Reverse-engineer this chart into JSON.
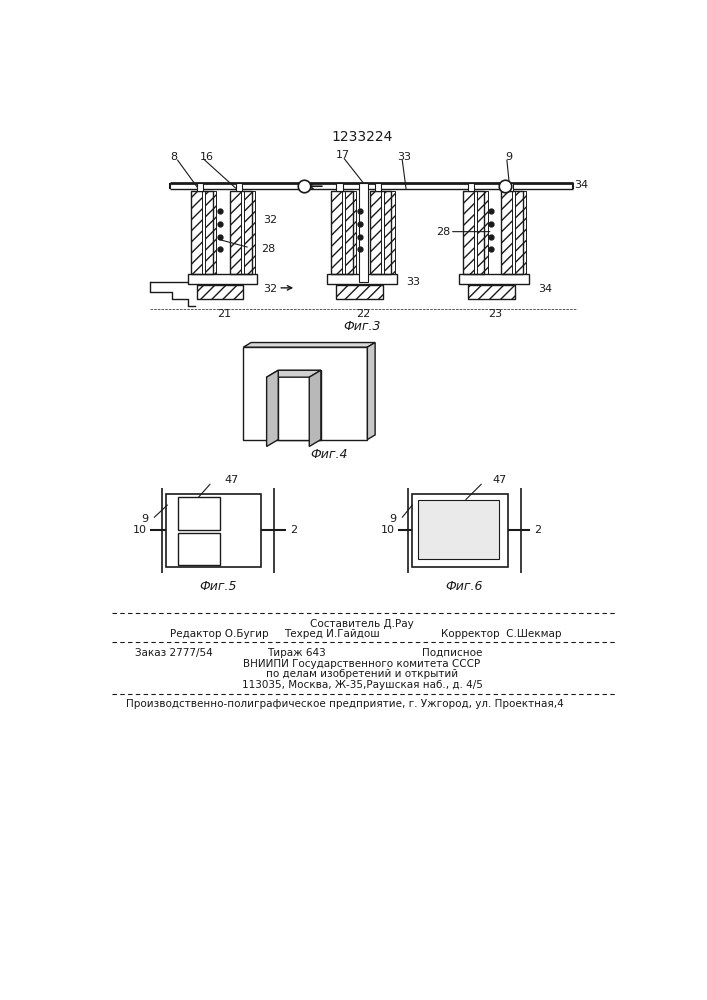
{
  "patent_number": "1233224",
  "bg_color": "#ffffff",
  "line_color": "#1a1a1a",
  "fig3_label": "Фиг.3",
  "fig4_label": "Фиг.4",
  "fig5_label": "Фиг.5",
  "fig6_label": "Фиг.6",
  "footer_editor": "Редактор О.Бугир",
  "footer_composer": "Составитель Д.Рау",
  "footer_tech": "Техред И.Гайдош",
  "footer_corrector": "Корректор  С.Шекмар",
  "footer_order": "Заказ 2777/54",
  "footer_tirazh": "Тираж 643",
  "footer_podpisnoe": "Подписное",
  "footer_vniip1": "ВНИИПИ Государственного комитета СССР",
  "footer_vniip2": "по делам изобретений и открытий",
  "footer_vniip3": "113035, Москва, Ж-35,Раушская наб., д. 4/5",
  "footer_prod": "Производственно-полиграфическое предприятие, г. Ужгород, ул. Проектная,4"
}
